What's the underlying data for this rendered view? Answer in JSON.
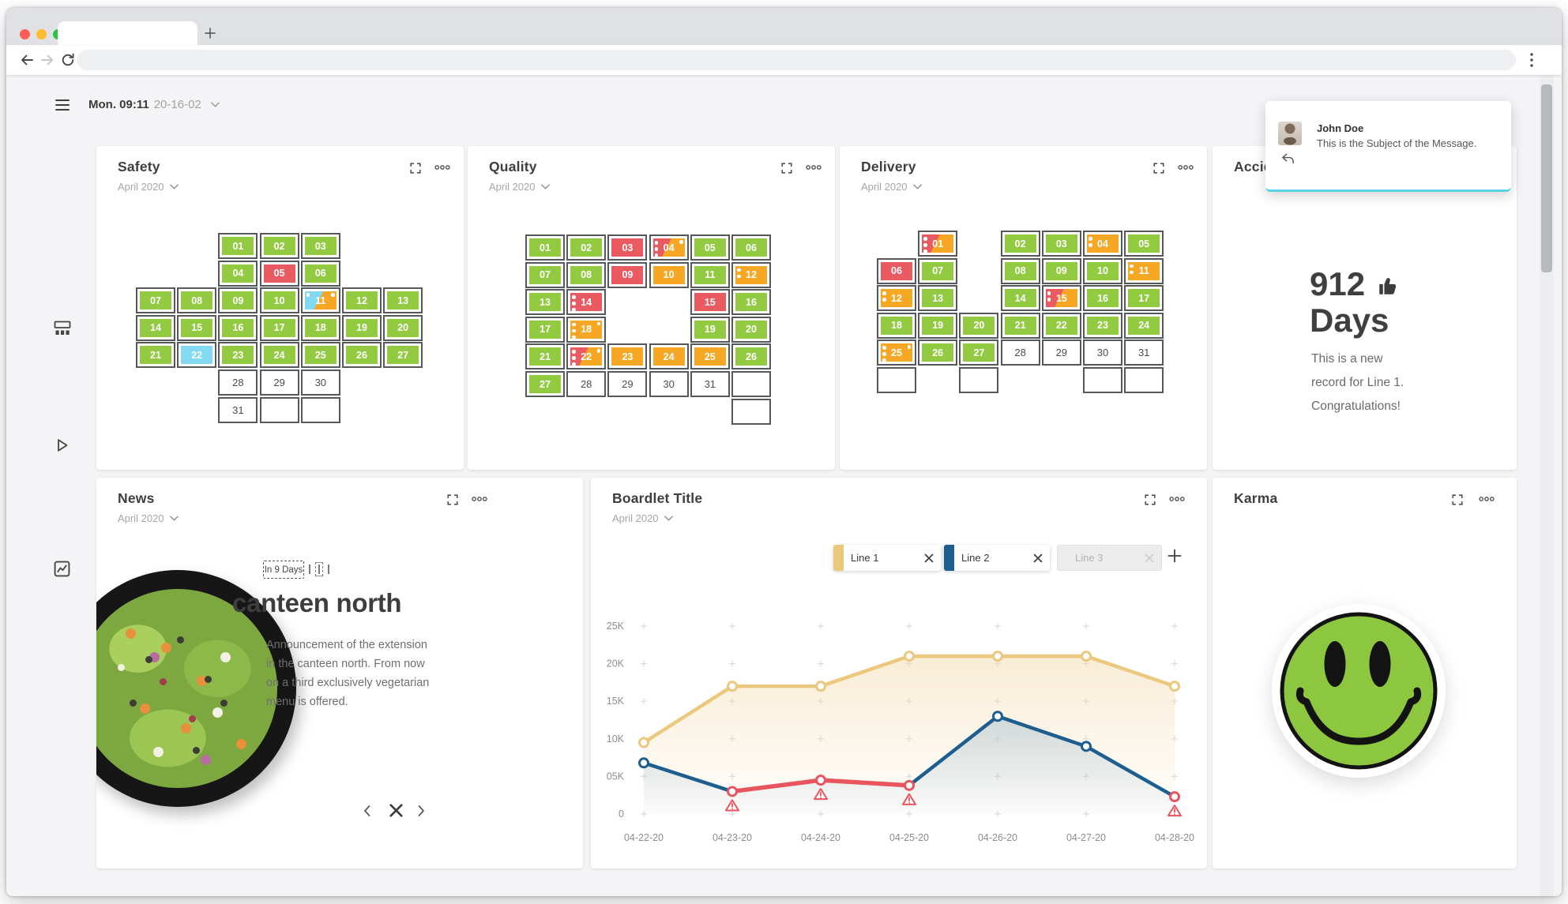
{
  "browser": {
    "tab_title": "",
    "new_tab_label": "+",
    "url": ""
  },
  "header": {
    "day_time": "Mon. 09:11",
    "date": "20-16-02"
  },
  "sidebar": {
    "icons": [
      "boardlets-icon",
      "play-icon",
      "widget-icon"
    ]
  },
  "colors": {
    "green": "#92cb41",
    "red": "#ea5a61",
    "orange": "#f6a723",
    "lightblue": "#84d9f2",
    "line1": "#ecc87e",
    "line2": "#1d5e8f",
    "alert": "#e8555e",
    "notification_accent": "#59d2e3",
    "smiley": "#8dc63f"
  },
  "cards": {
    "safety": {
      "title": "Safety",
      "subtitle": "April 2020"
    },
    "quality": {
      "title": "Quality",
      "subtitle": "April 2020"
    },
    "delivery": {
      "title": "Delivery",
      "subtitle": "April 2020"
    },
    "accident": {
      "title": "Accide",
      "big_number": "912",
      "big_unit": "Days",
      "message_lines": [
        "This is a new",
        "record for Line 1.",
        "Congratulations!"
      ]
    },
    "news": {
      "title": "News",
      "subtitle": "April 2020",
      "badge": "In 9 Days",
      "headline": "canteen north",
      "body": "Announcement of the extension in the canteen north. From now on a third exclusively vegetarian menu is offered."
    },
    "boardlet": {
      "title": "Boardlet Title",
      "subtitle": "April 2020",
      "legend": [
        {
          "label": "Line 1",
          "color": "#eac87a",
          "enabled": true
        },
        {
          "label": "Line 2",
          "color": "#1d5e8f",
          "enabled": true
        },
        {
          "label": "Line 3",
          "color": "#cccccc",
          "enabled": false
        }
      ]
    },
    "karma": {
      "title": "Karma"
    }
  },
  "notification": {
    "sender": "John Doe",
    "subject": "This is the Subject of the Message."
  },
  "calendars": {
    "safety": {
      "cols": 7,
      "cells": [
        {
          "d": "01",
          "r": 0,
          "c": 2,
          "t": "g"
        },
        {
          "d": "02",
          "r": 0,
          "c": 3,
          "t": "g"
        },
        {
          "d": "03",
          "r": 0,
          "c": 4,
          "t": "g"
        },
        {
          "d": "04",
          "r": 1,
          "c": 2,
          "t": "g"
        },
        {
          "d": "05",
          "r": 1,
          "c": 3,
          "t": "r"
        },
        {
          "d": "06",
          "r": 1,
          "c": 4,
          "t": "g"
        },
        {
          "d": "07",
          "r": 2,
          "c": 0,
          "t": "g"
        },
        {
          "d": "08",
          "r": 2,
          "c": 1,
          "t": "g"
        },
        {
          "d": "09",
          "r": 2,
          "c": 2,
          "t": "g"
        },
        {
          "d": "10",
          "r": 2,
          "c": 3,
          "t": "g"
        },
        {
          "d": "11",
          "r": 2,
          "c": 4,
          "t": "sbo",
          "dots": "tl,tr"
        },
        {
          "d": "12",
          "r": 2,
          "c": 5,
          "t": "g"
        },
        {
          "d": "13",
          "r": 2,
          "c": 6,
          "t": "g"
        },
        {
          "d": "14",
          "r": 3,
          "c": 0,
          "t": "g"
        },
        {
          "d": "15",
          "r": 3,
          "c": 1,
          "t": "g"
        },
        {
          "d": "16",
          "r": 3,
          "c": 2,
          "t": "g"
        },
        {
          "d": "17",
          "r": 3,
          "c": 3,
          "t": "g"
        },
        {
          "d": "18",
          "r": 3,
          "c": 4,
          "t": "g"
        },
        {
          "d": "19",
          "r": 3,
          "c": 5,
          "t": "g"
        },
        {
          "d": "20",
          "r": 3,
          "c": 6,
          "t": "g"
        },
        {
          "d": "21",
          "r": 4,
          "c": 0,
          "t": "g"
        },
        {
          "d": "22",
          "r": 4,
          "c": 1,
          "t": "b"
        },
        {
          "d": "23",
          "r": 4,
          "c": 2,
          "t": "g"
        },
        {
          "d": "24",
          "r": 4,
          "c": 3,
          "t": "g"
        },
        {
          "d": "25",
          "r": 4,
          "c": 4,
          "t": "g"
        },
        {
          "d": "26",
          "r": 4,
          "c": 5,
          "t": "g"
        },
        {
          "d": "27",
          "r": 4,
          "c": 6,
          "t": "g"
        },
        {
          "d": "28",
          "r": 5,
          "c": 2,
          "t": "w"
        },
        {
          "d": "29",
          "r": 5,
          "c": 3,
          "t": "w"
        },
        {
          "d": "30",
          "r": 5,
          "c": 4,
          "t": "w"
        },
        {
          "d": "31",
          "r": 6,
          "c": 2,
          "t": "w"
        },
        {
          "d": "",
          "r": 6,
          "c": 3,
          "t": "e"
        },
        {
          "d": "",
          "r": 6,
          "c": 4,
          "t": "e"
        }
      ]
    },
    "quality": {
      "cols": 6,
      "cells": [
        {
          "d": "01",
          "r": 0,
          "c": 0,
          "t": "g"
        },
        {
          "d": "02",
          "r": 0,
          "c": 1,
          "t": "g"
        },
        {
          "d": "03",
          "r": 0,
          "c": 2,
          "t": "r"
        },
        {
          "d": "04",
          "r": 0,
          "c": 3,
          "t": "sro",
          "dots": "l3,tr"
        },
        {
          "d": "05",
          "r": 0,
          "c": 4,
          "t": "g"
        },
        {
          "d": "06",
          "r": 0,
          "c": 5,
          "t": "g"
        },
        {
          "d": "07",
          "r": 1,
          "c": 0,
          "t": "g"
        },
        {
          "d": "08",
          "r": 1,
          "c": 1,
          "t": "g"
        },
        {
          "d": "09",
          "r": 1,
          "c": 2,
          "t": "r"
        },
        {
          "d": "10",
          "r": 1,
          "c": 3,
          "t": "o"
        },
        {
          "d": "11",
          "r": 1,
          "c": 4,
          "t": "g"
        },
        {
          "d": "12",
          "r": 1,
          "c": 5,
          "t": "o",
          "dots": "l2"
        },
        {
          "d": "13",
          "r": 2,
          "c": 0,
          "t": "g"
        },
        {
          "d": "14",
          "r": 2,
          "c": 1,
          "t": "r",
          "dots": "l3"
        },
        {
          "d": "15",
          "r": 2,
          "c": 4,
          "t": "r"
        },
        {
          "d": "16",
          "r": 2,
          "c": 5,
          "t": "g"
        },
        {
          "d": "17",
          "r": 3,
          "c": 0,
          "t": "g"
        },
        {
          "d": "18",
          "r": 3,
          "c": 1,
          "t": "o",
          "dots": "l3,tr"
        },
        {
          "d": "19",
          "r": 3,
          "c": 4,
          "t": "g"
        },
        {
          "d": "20",
          "r": 3,
          "c": 5,
          "t": "g"
        },
        {
          "d": "21",
          "r": 4,
          "c": 0,
          "t": "g"
        },
        {
          "d": "22",
          "r": 4,
          "c": 1,
          "t": "sro",
          "dots": "l3,tr"
        },
        {
          "d": "23",
          "r": 4,
          "c": 2,
          "t": "o"
        },
        {
          "d": "24",
          "r": 4,
          "c": 3,
          "t": "o"
        },
        {
          "d": "25",
          "r": 4,
          "c": 4,
          "t": "o"
        },
        {
          "d": "26",
          "r": 4,
          "c": 5,
          "t": "g"
        },
        {
          "d": "27",
          "r": 5,
          "c": 0,
          "t": "g"
        },
        {
          "d": "28",
          "r": 5,
          "c": 1,
          "t": "w"
        },
        {
          "d": "29",
          "r": 5,
          "c": 2,
          "t": "w"
        },
        {
          "d": "30",
          "r": 5,
          "c": 3,
          "t": "w"
        },
        {
          "d": "31",
          "r": 5,
          "c": 4,
          "t": "w"
        },
        {
          "d": "",
          "r": 5,
          "c": 5,
          "t": "e"
        },
        {
          "d": "",
          "r": 6,
          "c": 5,
          "t": "e"
        }
      ]
    },
    "delivery": {
      "cols": 7,
      "cells": [
        {
          "d": "01",
          "r": 0,
          "c": 1,
          "t": "sro",
          "dots": "l3"
        },
        {
          "d": "02",
          "r": 0,
          "c": 3,
          "t": "g"
        },
        {
          "d": "03",
          "r": 0,
          "c": 4,
          "t": "g"
        },
        {
          "d": "04",
          "r": 0,
          "c": 5,
          "t": "o",
          "dots": "l2"
        },
        {
          "d": "05",
          "r": 0,
          "c": 6,
          "t": "g"
        },
        {
          "d": "06",
          "r": 1,
          "c": 0,
          "t": "r"
        },
        {
          "d": "07",
          "r": 1,
          "c": 1,
          "t": "g"
        },
        {
          "d": "08",
          "r": 1,
          "c": 3,
          "t": "g"
        },
        {
          "d": "09",
          "r": 1,
          "c": 4,
          "t": "g"
        },
        {
          "d": "10",
          "r": 1,
          "c": 5,
          "t": "g"
        },
        {
          "d": "11",
          "r": 1,
          "c": 6,
          "t": "o",
          "dots": "l2"
        },
        {
          "d": "12",
          "r": 2,
          "c": 0,
          "t": "o",
          "dots": "l2"
        },
        {
          "d": "13",
          "r": 2,
          "c": 1,
          "t": "g"
        },
        {
          "d": "14",
          "r": 2,
          "c": 3,
          "t": "g"
        },
        {
          "d": "15",
          "r": 2,
          "c": 4,
          "t": "sro",
          "dots": "l2"
        },
        {
          "d": "16",
          "r": 2,
          "c": 5,
          "t": "g"
        },
        {
          "d": "17",
          "r": 2,
          "c": 6,
          "t": "g"
        },
        {
          "d": "18",
          "r": 3,
          "c": 0,
          "t": "g"
        },
        {
          "d": "19",
          "r": 3,
          "c": 1,
          "t": "g"
        },
        {
          "d": "20",
          "r": 3,
          "c": 2,
          "t": "g"
        },
        {
          "d": "21",
          "r": 3,
          "c": 3,
          "t": "g"
        },
        {
          "d": "22",
          "r": 3,
          "c": 4,
          "t": "g"
        },
        {
          "d": "23",
          "r": 3,
          "c": 5,
          "t": "g"
        },
        {
          "d": "24",
          "r": 3,
          "c": 6,
          "t": "g"
        },
        {
          "d": "25",
          "r": 4,
          "c": 0,
          "t": "o",
          "dots": "l3,tr"
        },
        {
          "d": "26",
          "r": 4,
          "c": 1,
          "t": "g"
        },
        {
          "d": "27",
          "r": 4,
          "c": 2,
          "t": "g"
        },
        {
          "d": "28",
          "r": 4,
          "c": 3,
          "t": "w"
        },
        {
          "d": "29",
          "r": 4,
          "c": 4,
          "t": "w"
        },
        {
          "d": "30",
          "r": 4,
          "c": 5,
          "t": "w"
        },
        {
          "d": "31",
          "r": 4,
          "c": 6,
          "t": "w"
        },
        {
          "d": "",
          "r": 5,
          "c": 0,
          "t": "e"
        },
        {
          "d": "",
          "r": 5,
          "c": 2,
          "t": "e"
        },
        {
          "d": "",
          "r": 5,
          "c": 5,
          "t": "e"
        },
        {
          "d": "",
          "r": 5,
          "c": 6,
          "t": "e"
        }
      ]
    }
  },
  "chart_data": {
    "type": "line",
    "title": "Boardlet Title",
    "x": [
      "04-22-20",
      "04-23-20",
      "04-24-20",
      "04-25-20",
      "04-26-20",
      "04-27-20",
      "04-28-20"
    ],
    "series": [
      {
        "name": "Line 1",
        "color": "#ecc87e",
        "values": [
          9500,
          17000,
          17000,
          21000,
          21000,
          21000,
          17000
        ]
      },
      {
        "name": "Line 2",
        "color": "#1d5e8f",
        "alert_color": "#e8555e",
        "values": [
          6800,
          3000,
          4500,
          3800,
          13000,
          9000,
          2300
        ],
        "alert_segments": [
          [
            1,
            3
          ]
        ],
        "alert_points": [
          1,
          2,
          3,
          6
        ],
        "warning_points": [
          1,
          2,
          3,
          6
        ]
      }
    ],
    "y_ticks": [
      "25K",
      "20K",
      "15K",
      "10K",
      "05K",
      "0"
    ],
    "ylim": [
      0,
      25000
    ],
    "grid": "plus-marks",
    "legend_position": "top-right"
  }
}
